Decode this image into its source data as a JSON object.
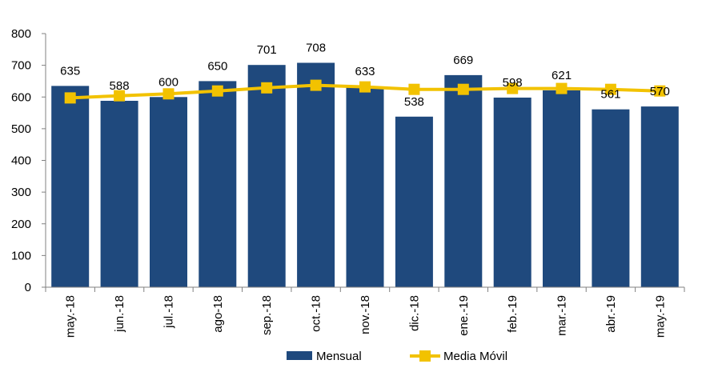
{
  "chart_data": {
    "type": "bar",
    "categories": [
      "may.-18",
      "jun.-18",
      "jul.-18",
      "ago-18",
      "sep.-18",
      "oct.-18",
      "nov.-18",
      "dic.-18",
      "ene.-19",
      "feb.-19",
      "mar.-19",
      "abr.-19",
      "may.-19"
    ],
    "series": [
      {
        "name": "Mensual",
        "type": "bar",
        "color": "#1f497d",
        "values": [
          635,
          588,
          600,
          650,
          701,
          708,
          633,
          538,
          669,
          598,
          621,
          561,
          570
        ]
      },
      {
        "name": "Media Móvil",
        "type": "line",
        "color": "#f2c200",
        "values": [
          597,
          604,
          610,
          619,
          629,
          637,
          632,
          624,
          624,
          627,
          627,
          624,
          619
        ]
      }
    ],
    "data_labels": [
      "635",
      "588",
      "600",
      "650",
      "701",
      "708",
      "633",
      "538",
      "669",
      "598",
      "621",
      "561",
      "570"
    ],
    "ylim": [
      0,
      800
    ],
    "yticks": [
      "0",
      "100",
      "200",
      "300",
      "400",
      "500",
      "600",
      "700",
      "800"
    ],
    "grid": false,
    "legend_position": "bottom"
  }
}
